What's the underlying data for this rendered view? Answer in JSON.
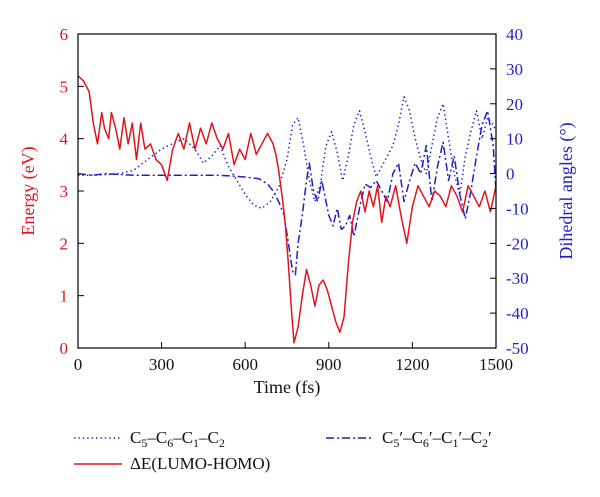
{
  "chart_data": {
    "type": "line",
    "x_axis": {
      "label": "Time (fs)",
      "range": [
        0,
        1500
      ],
      "ticks": [
        0,
        300,
        600,
        900,
        1200,
        1500
      ]
    },
    "y_left": {
      "label": "Energy (eV)",
      "range": [
        0,
        6
      ],
      "ticks": [
        0,
        1,
        2,
        3,
        4,
        5,
        6
      ],
      "color": "#e0151b"
    },
    "y_right": {
      "label": "Dihedral angles (°)",
      "range": [
        -50,
        40
      ],
      "ticks": [
        -50,
        -40,
        -30,
        -20,
        -10,
        0,
        10,
        20,
        30,
        40
      ],
      "color": "#1f1fc8"
    },
    "grid": false,
    "legend_position": "bottom",
    "series": [
      {
        "key": "c5c6c1c2",
        "legend": {
          "parts": [
            [
              "C",
              ""
            ],
            [
              "5",
              "sub"
            ],
            [
              "–C",
              ""
            ],
            [
              "6",
              "sub"
            ],
            [
              "–C",
              ""
            ],
            [
              "1",
              "sub"
            ],
            [
              "–C",
              ""
            ],
            [
              "2",
              "sub"
            ]
          ]
        },
        "axis": "right",
        "style": "dotted",
        "color": "#1f1fc8",
        "points": [
          [
            0,
            -0.5
          ],
          [
            50,
            -0.5
          ],
          [
            100,
            -0.3
          ],
          [
            150,
            0
          ],
          [
            200,
            1
          ],
          [
            250,
            4
          ],
          [
            300,
            7
          ],
          [
            350,
            9
          ],
          [
            380,
            10
          ],
          [
            420,
            7
          ],
          [
            450,
            3
          ],
          [
            480,
            5
          ],
          [
            510,
            8
          ],
          [
            540,
            2
          ],
          [
            570,
            -2
          ],
          [
            600,
            -6
          ],
          [
            630,
            -9
          ],
          [
            660,
            -10
          ],
          [
            690,
            -8
          ],
          [
            720,
            -4
          ],
          [
            750,
            4
          ],
          [
            770,
            14
          ],
          [
            790,
            16
          ],
          [
            810,
            8
          ],
          [
            830,
            -2
          ],
          [
            850,
            -8
          ],
          [
            870,
            -3
          ],
          [
            890,
            8
          ],
          [
            910,
            12
          ],
          [
            930,
            6
          ],
          [
            950,
            -2
          ],
          [
            970,
            5
          ],
          [
            990,
            14
          ],
          [
            1010,
            18
          ],
          [
            1030,
            12
          ],
          [
            1050,
            5
          ],
          [
            1070,
            -1
          ],
          [
            1090,
            2
          ],
          [
            1110,
            5
          ],
          [
            1130,
            8
          ],
          [
            1150,
            14
          ],
          [
            1170,
            22
          ],
          [
            1190,
            18
          ],
          [
            1210,
            10
          ],
          [
            1230,
            4
          ],
          [
            1250,
            0
          ],
          [
            1270,
            8
          ],
          [
            1290,
            16
          ],
          [
            1310,
            20
          ],
          [
            1330,
            10
          ],
          [
            1350,
            0
          ],
          [
            1370,
            -6
          ],
          [
            1390,
            5
          ],
          [
            1410,
            12
          ],
          [
            1430,
            18
          ],
          [
            1450,
            10
          ],
          [
            1470,
            16
          ],
          [
            1490,
            14
          ],
          [
            1500,
            12
          ]
        ]
      },
      {
        "key": "c5pc6pc1pc2p",
        "legend": {
          "parts": [
            [
              "C",
              ""
            ],
            [
              "5",
              "sub"
            ],
            [
              "′–C",
              ""
            ],
            [
              "6",
              "sub"
            ],
            [
              "′–C",
              ""
            ],
            [
              "1",
              "sub"
            ],
            [
              "′–C",
              ""
            ],
            [
              "2",
              "sub"
            ],
            [
              "′",
              ""
            ]
          ]
        },
        "axis": "right",
        "style": "dash-dot",
        "color": "#1f1fc8",
        "points": [
          [
            0,
            0
          ],
          [
            50,
            -0.5
          ],
          [
            100,
            0
          ],
          [
            200,
            -0.5
          ],
          [
            300,
            -0.5
          ],
          [
            400,
            -0.5
          ],
          [
            500,
            -0.5
          ],
          [
            550,
            -0.7
          ],
          [
            600,
            -1
          ],
          [
            650,
            -1.5
          ],
          [
            680,
            -3
          ],
          [
            700,
            -5
          ],
          [
            720,
            -8
          ],
          [
            740,
            -12
          ],
          [
            755,
            -20
          ],
          [
            770,
            -28
          ],
          [
            780,
            -29
          ],
          [
            790,
            -20
          ],
          [
            805,
            -12
          ],
          [
            820,
            -2
          ],
          [
            830,
            3
          ],
          [
            845,
            -5
          ],
          [
            860,
            -8
          ],
          [
            875,
            -2
          ],
          [
            890,
            -8
          ],
          [
            900,
            -12
          ],
          [
            915,
            -15
          ],
          [
            930,
            -10
          ],
          [
            945,
            -16
          ],
          [
            960,
            -15
          ],
          [
            975,
            -12
          ],
          [
            990,
            -18
          ],
          [
            1010,
            -10
          ],
          [
            1030,
            -3
          ],
          [
            1050,
            -4
          ],
          [
            1070,
            -2
          ],
          [
            1090,
            -5
          ],
          [
            1110,
            -8
          ],
          [
            1130,
            0
          ],
          [
            1150,
            3
          ],
          [
            1170,
            -8
          ],
          [
            1190,
            -2
          ],
          [
            1210,
            3
          ],
          [
            1230,
            0
          ],
          [
            1250,
            8
          ],
          [
            1270,
            -8
          ],
          [
            1290,
            2
          ],
          [
            1310,
            9
          ],
          [
            1330,
            -2
          ],
          [
            1350,
            5
          ],
          [
            1370,
            -6
          ],
          [
            1390,
            -13
          ],
          [
            1410,
            -5
          ],
          [
            1430,
            5
          ],
          [
            1450,
            14
          ],
          [
            1470,
            18
          ],
          [
            1490,
            8
          ],
          [
            1500,
            -5
          ]
        ]
      },
      {
        "key": "dE",
        "legend": {
          "parts": [
            [
              "ΔE(LUMO-HOMO)",
              ""
            ]
          ]
        },
        "axis": "left",
        "style": "solid",
        "color": "#e0151b",
        "points": [
          [
            0,
            5.2
          ],
          [
            20,
            5.1
          ],
          [
            40,
            4.9
          ],
          [
            55,
            4.3
          ],
          [
            70,
            3.9
          ],
          [
            85,
            4.5
          ],
          [
            95,
            4.2
          ],
          [
            110,
            4.0
          ],
          [
            120,
            4.5
          ],
          [
            135,
            4.2
          ],
          [
            150,
            3.8
          ],
          [
            165,
            4.4
          ],
          [
            180,
            3.9
          ],
          [
            195,
            4.3
          ],
          [
            210,
            3.6
          ],
          [
            225,
            4.3
          ],
          [
            240,
            3.8
          ],
          [
            260,
            3.9
          ],
          [
            280,
            3.6
          ],
          [
            300,
            3.5
          ],
          [
            320,
            3.2
          ],
          [
            340,
            3.8
          ],
          [
            360,
            4.1
          ],
          [
            380,
            3.8
          ],
          [
            400,
            4.3
          ],
          [
            420,
            3.8
          ],
          [
            440,
            4.2
          ],
          [
            460,
            3.9
          ],
          [
            480,
            4.3
          ],
          [
            500,
            4.0
          ],
          [
            520,
            3.8
          ],
          [
            540,
            4.1
          ],
          [
            560,
            3.5
          ],
          [
            580,
            3.8
          ],
          [
            600,
            3.6
          ],
          [
            620,
            4.1
          ],
          [
            640,
            3.7
          ],
          [
            660,
            3.9
          ],
          [
            680,
            4.1
          ],
          [
            700,
            3.9
          ],
          [
            710,
            3.7
          ],
          [
            720,
            3.4
          ],
          [
            735,
            2.8
          ],
          [
            745,
            2.3
          ],
          [
            755,
            1.6
          ],
          [
            765,
            0.8
          ],
          [
            775,
            0.1
          ],
          [
            790,
            0.4
          ],
          [
            805,
            1.0
          ],
          [
            820,
            1.5
          ],
          [
            835,
            1.2
          ],
          [
            850,
            0.8
          ],
          [
            865,
            1.2
          ],
          [
            880,
            1.3
          ],
          [
            895,
            1.1
          ],
          [
            910,
            0.8
          ],
          [
            925,
            0.5
          ],
          [
            940,
            0.3
          ],
          [
            955,
            0.6
          ],
          [
            970,
            1.6
          ],
          [
            985,
            2.4
          ],
          [
            1000,
            2.8
          ],
          [
            1015,
            3.0
          ],
          [
            1030,
            2.6
          ],
          [
            1045,
            3.0
          ],
          [
            1060,
            2.7
          ],
          [
            1075,
            3.1
          ],
          [
            1090,
            2.4
          ],
          [
            1105,
            2.9
          ],
          [
            1120,
            2.7
          ],
          [
            1140,
            3.1
          ],
          [
            1160,
            2.5
          ],
          [
            1180,
            2.0
          ],
          [
            1200,
            2.7
          ],
          [
            1220,
            3.1
          ],
          [
            1240,
            2.9
          ],
          [
            1260,
            2.7
          ],
          [
            1280,
            3.0
          ],
          [
            1300,
            2.9
          ],
          [
            1320,
            2.7
          ],
          [
            1340,
            3.1
          ],
          [
            1360,
            2.9
          ],
          [
            1380,
            2.6
          ],
          [
            1400,
            3.1
          ],
          [
            1420,
            2.9
          ],
          [
            1440,
            2.7
          ],
          [
            1460,
            3.0
          ],
          [
            1480,
            2.6
          ],
          [
            1500,
            3.1
          ]
        ]
      }
    ]
  }
}
